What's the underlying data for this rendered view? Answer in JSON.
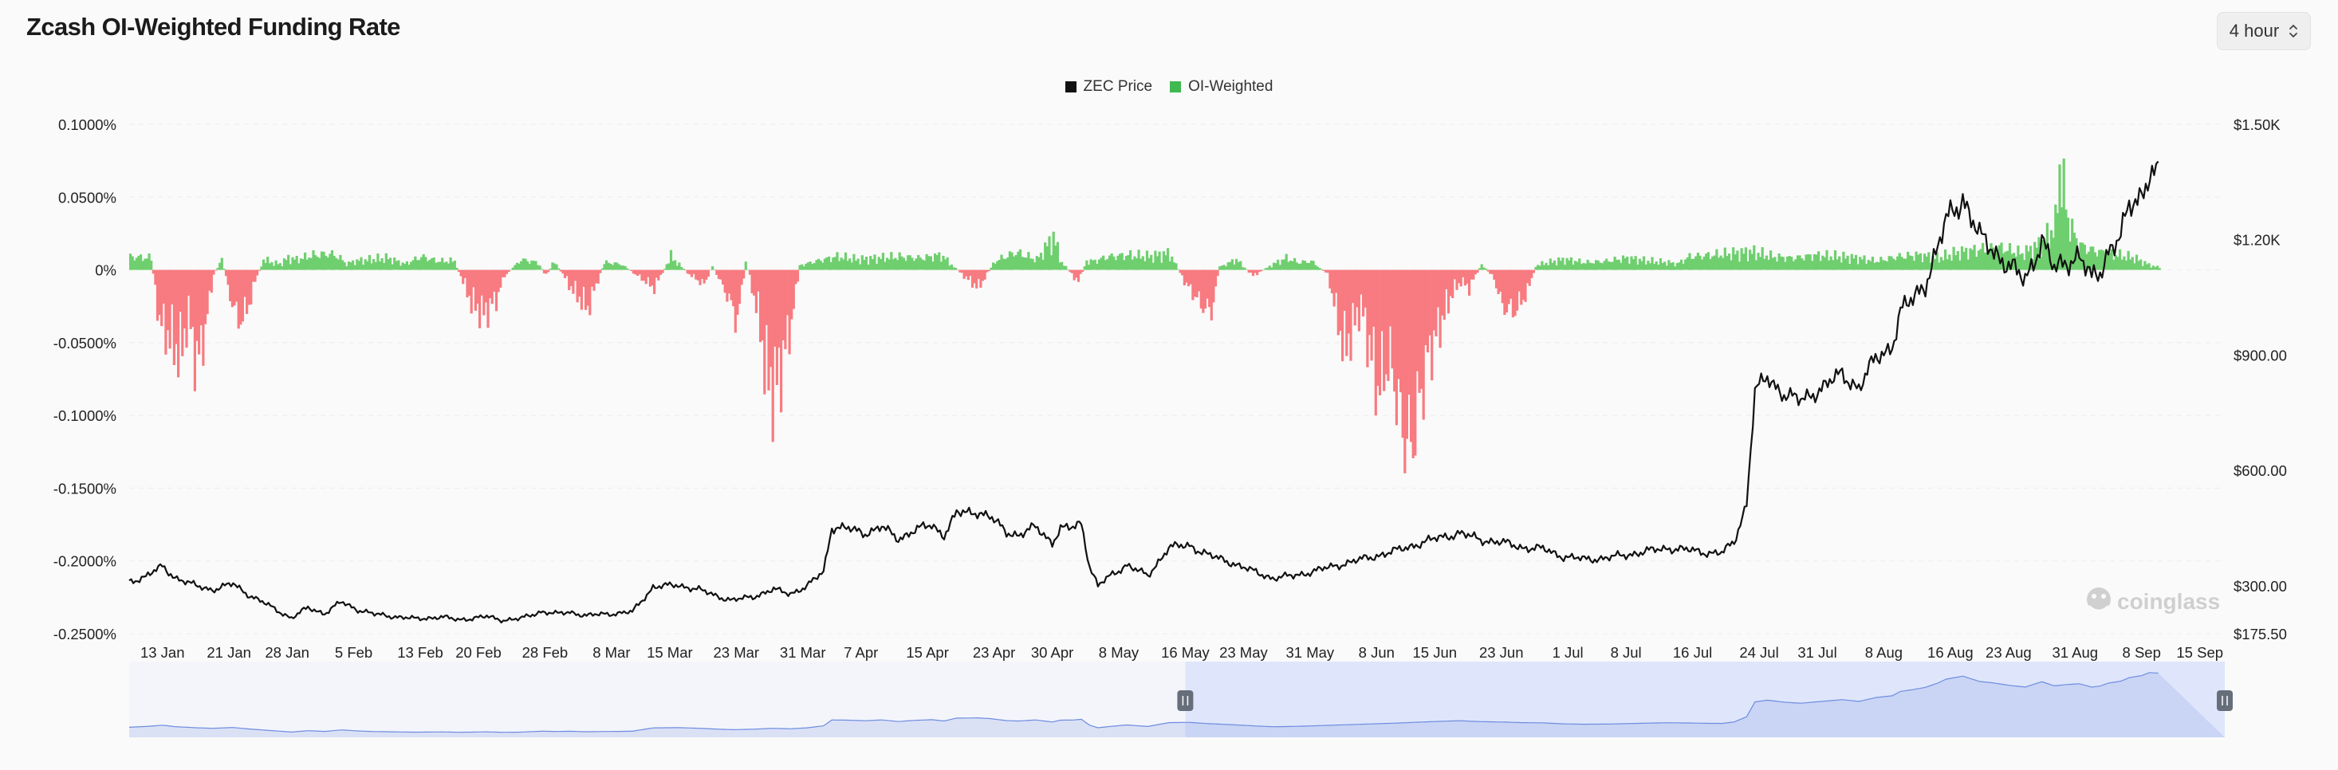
{
  "header": {
    "title": "Zcash OI-Weighted Funding Rate",
    "interval": "4 hour"
  },
  "legend": [
    {
      "label": "ZEC Price",
      "color": "#111111"
    },
    {
      "label": "OI-Weighted",
      "color": "#3fb950"
    }
  ],
  "watermark": "coinglass",
  "colors": {
    "positive": "#6fcf6f",
    "negative": "#f77b80",
    "price": "#111111",
    "navigator_fill": "#dfe6fb",
    "navigator_line": "#6e8ce0"
  },
  "chart_data": {
    "type": "line",
    "x_range": [
      "2025-01-09",
      "2025-09-18"
    ],
    "x_ticks": [
      "13 Jan",
      "21 Jan",
      "28 Jan",
      "5 Feb",
      "13 Feb",
      "20 Feb",
      "28 Feb",
      "8 Mar",
      "15 Mar",
      "23 Mar",
      "31 Mar",
      "7 Apr",
      "15 Apr",
      "23 Apr",
      "30 Apr",
      "8 May",
      "16 May",
      "23 May",
      "31 May",
      "8 Jun",
      "15 Jun",
      "23 Jun",
      "1 Jul",
      "8 Jul",
      "16 Jul",
      "24 Jul",
      "31 Jul",
      "8 Aug",
      "16 Aug",
      "23 Aug",
      "31 Aug",
      "8 Sep",
      "15 Sep"
    ],
    "y_left": {
      "ticks": [
        "0.1000%",
        "0.0500%",
        "0%",
        "-0.0500%",
        "-0.1000%",
        "-0.1500%",
        "-0.2000%",
        "-0.2500%"
      ],
      "range": [
        -0.25,
        0.1
      ]
    },
    "y_right": {
      "ticks": [
        "$1.50K",
        "$1.20K",
        "$900.00",
        "$600.00",
        "$300.00",
        "$175.50"
      ],
      "range": [
        175.5,
        1500
      ]
    },
    "series": [
      {
        "name": "ZEC Price",
        "axis": "right",
        "points": [
          [
            0,
            310
          ],
          [
            4,
            325
          ],
          [
            8,
            350
          ],
          [
            11,
            322
          ],
          [
            16,
            300
          ],
          [
            20,
            290
          ],
          [
            25,
            305
          ],
          [
            29,
            275
          ],
          [
            33,
            252
          ],
          [
            39,
            216
          ],
          [
            43,
            243
          ],
          [
            47,
            228
          ],
          [
            51,
            258
          ],
          [
            55,
            238
          ],
          [
            59,
            226
          ],
          [
            64,
            220
          ],
          [
            69,
            214
          ],
          [
            75,
            219
          ],
          [
            79,
            212
          ],
          [
            83,
            216
          ],
          [
            86,
            220
          ],
          [
            90,
            211
          ],
          [
            94,
            214
          ],
          [
            99,
            233
          ],
          [
            103,
            227
          ],
          [
            106,
            232
          ],
          [
            110,
            222
          ],
          [
            114,
            227
          ],
          [
            117,
            228
          ],
          [
            121,
            232
          ],
          [
            126,
            297
          ],
          [
            132,
            302
          ],
          [
            137,
            290
          ],
          [
            141,
            275
          ],
          [
            145,
            262
          ],
          [
            150,
            272
          ],
          [
            155,
            290
          ],
          [
            159,
            280
          ],
          [
            163,
            298
          ],
          [
            167,
            338
          ],
          [
            169,
            453
          ],
          [
            173,
            448
          ],
          [
            177,
            437
          ],
          [
            181,
            453
          ],
          [
            185,
            422
          ],
          [
            189,
            445
          ],
          [
            193,
            458
          ],
          [
            196,
            432
          ],
          [
            199,
            488
          ],
          [
            204,
            493
          ],
          [
            207,
            479
          ],
          [
            211,
            440
          ],
          [
            214,
            432
          ],
          [
            218,
            453
          ],
          [
            222,
            413
          ],
          [
            224,
            448
          ],
          [
            227,
            451
          ],
          [
            229,
            465
          ],
          [
            231,
            350
          ],
          [
            233,
            300
          ],
          [
            236,
            326
          ],
          [
            240,
            355
          ],
          [
            245,
            325
          ],
          [
            250,
            400
          ],
          [
            255,
            405
          ],
          [
            260,
            378
          ],
          [
            265,
            361
          ],
          [
            270,
            339
          ],
          [
            275,
            320
          ],
          [
            280,
            326
          ],
          [
            285,
            338
          ],
          [
            290,
            352
          ],
          [
            295,
            365
          ],
          [
            300,
            378
          ],
          [
            305,
            392
          ],
          [
            310,
            409
          ],
          [
            315,
            425
          ],
          [
            320,
            437
          ],
          [
            325,
            420
          ],
          [
            330,
            413
          ],
          [
            335,
            400
          ],
          [
            340,
            396
          ],
          [
            345,
            376
          ],
          [
            350,
            369
          ],
          [
            355,
            372
          ],
          [
            360,
            380
          ],
          [
            365,
            390
          ],
          [
            370,
            398
          ],
          [
            375,
            393
          ],
          [
            380,
            386
          ],
          [
            383,
            385
          ],
          [
            386,
            413
          ],
          [
            389,
            515
          ],
          [
            391,
            805
          ],
          [
            394,
            840
          ],
          [
            398,
            800
          ],
          [
            402,
            780
          ],
          [
            407,
            815
          ],
          [
            412,
            850
          ],
          [
            416,
            815
          ],
          [
            420,
            890
          ],
          [
            424,
            925
          ],
          [
            426,
            1010
          ],
          [
            429,
            1045
          ],
          [
            432,
            1090
          ],
          [
            435,
            1175
          ],
          [
            437,
            1250
          ],
          [
            441,
            1310
          ],
          [
            445,
            1205
          ],
          [
            448,
            1180
          ],
          [
            452,
            1130
          ],
          [
            456,
            1095
          ],
          [
            460,
            1200
          ],
          [
            463,
            1120
          ],
          [
            466,
            1145
          ],
          [
            469,
            1160
          ],
          [
            472,
            1095
          ],
          [
            474,
            1115
          ],
          [
            476,
            1175
          ],
          [
            479,
            1210
          ],
          [
            481,
            1280
          ],
          [
            484,
            1320
          ],
          [
            486,
            1380
          ],
          [
            487,
            1370
          ]
        ]
      },
      {
        "name": "OI-Weighted",
        "axis": "left",
        "points": [
          [
            0,
            0.009
          ],
          [
            5,
            0.008
          ],
          [
            7,
            -0.035
          ],
          [
            10,
            -0.048
          ],
          [
            12,
            -0.058
          ],
          [
            14,
            -0.03
          ],
          [
            16,
            -0.065
          ],
          [
            18,
            -0.04
          ],
          [
            20,
            -0.003
          ],
          [
            22,
            0.007
          ],
          [
            24,
            -0.018
          ],
          [
            26,
            -0.035
          ],
          [
            28,
            -0.028
          ],
          [
            30,
            -0.008
          ],
          [
            32,
            0.007
          ],
          [
            34,
            0.005
          ],
          [
            36,
            0.004
          ],
          [
            38,
            0.008
          ],
          [
            40,
            0.007
          ],
          [
            44,
            0.01
          ],
          [
            48,
            0.011
          ],
          [
            50,
            0.009
          ],
          [
            52,
            0.004
          ],
          [
            54,
            0.006
          ],
          [
            58,
            0.007
          ],
          [
            62,
            0.008
          ],
          [
            66,
            0.004
          ],
          [
            70,
            0.009
          ],
          [
            74,
            0.006
          ],
          [
            78,
            0.006
          ],
          [
            82,
            -0.022
          ],
          [
            85,
            -0.03
          ],
          [
            88,
            -0.02
          ],
          [
            90,
            -0.004
          ],
          [
            94,
            0.007
          ],
          [
            98,
            0.005
          ],
          [
            100,
            -0.004
          ],
          [
            102,
            0.006
          ],
          [
            106,
            -0.012
          ],
          [
            110,
            -0.026
          ],
          [
            114,
            0.005
          ],
          [
            118,
            0.004
          ],
          [
            122,
            -0.004
          ],
          [
            126,
            -0.012
          ],
          [
            130,
            0.009
          ],
          [
            134,
            -0.002
          ],
          [
            138,
            -0.01
          ],
          [
            140,
            0.003
          ],
          [
            144,
            -0.02
          ],
          [
            146,
            -0.035
          ],
          [
            148,
            0.006
          ],
          [
            151,
            -0.03
          ],
          [
            153,
            -0.072
          ],
          [
            155,
            -0.082
          ],
          [
            157,
            -0.06
          ],
          [
            159,
            -0.035
          ],
          [
            161,
            0.003
          ],
          [
            165,
            0.006
          ],
          [
            170,
            0.009
          ],
          [
            175,
            0.007
          ],
          [
            180,
            0.008
          ],
          [
            185,
            0.009
          ],
          [
            190,
            0.008
          ],
          [
            195,
            0.01
          ],
          [
            200,
            -0.003
          ],
          [
            204,
            -0.012
          ],
          [
            208,
            0.006
          ],
          [
            213,
            0.012
          ],
          [
            218,
            0.007
          ],
          [
            222,
            0.022
          ],
          [
            224,
            0.005
          ],
          [
            228,
            -0.008
          ],
          [
            230,
            0.006
          ],
          [
            232,
            0.006
          ],
          [
            235,
            0.009
          ],
          [
            240,
            0.01
          ],
          [
            245,
            0.009
          ],
          [
            250,
            0.011
          ],
          [
            254,
            -0.01
          ],
          [
            258,
            -0.025
          ],
          [
            260,
            -0.028
          ],
          [
            262,
            0.002
          ],
          [
            266,
            0.007
          ],
          [
            270,
            -0.004
          ],
          [
            275,
            0.004
          ],
          [
            278,
            0.008
          ],
          [
            281,
            0.005
          ],
          [
            284,
            0.006
          ],
          [
            288,
            -0.003
          ],
          [
            292,
            -0.055
          ],
          [
            296,
            -0.024
          ],
          [
            300,
            -0.08
          ],
          [
            303,
            -0.06
          ],
          [
            306,
            -0.11
          ],
          [
            308,
            -0.12
          ],
          [
            310,
            -0.09
          ],
          [
            312,
            -0.06
          ],
          [
            314,
            -0.045
          ],
          [
            316,
            -0.03
          ],
          [
            318,
            -0.015
          ],
          [
            320,
            -0.008
          ],
          [
            322,
            -0.012
          ],
          [
            325,
            0.004
          ],
          [
            328,
            -0.006
          ],
          [
            330,
            -0.025
          ],
          [
            333,
            -0.028
          ],
          [
            336,
            -0.015
          ],
          [
            338,
            0.003
          ],
          [
            341,
            0.005
          ],
          [
            345,
            0.007
          ],
          [
            350,
            0.005
          ],
          [
            355,
            0.006
          ],
          [
            360,
            0.008
          ],
          [
            365,
            0.006
          ],
          [
            370,
            0.005
          ],
          [
            372,
            0.004
          ],
          [
            375,
            0.009
          ],
          [
            380,
            0.01
          ],
          [
            385,
            0.011
          ],
          [
            390,
            0.012
          ],
          [
            395,
            0.009
          ],
          [
            400,
            0.008
          ],
          [
            405,
            0.01
          ],
          [
            410,
            0.009
          ],
          [
            415,
            0.008
          ],
          [
            420,
            0.006
          ],
          [
            425,
            0.009
          ],
          [
            430,
            0.01
          ],
          [
            435,
            0.008
          ],
          [
            440,
            0.012
          ],
          [
            445,
            0.014
          ],
          [
            450,
            0.015
          ],
          [
            455,
            0.011
          ],
          [
            460,
            0.018
          ],
          [
            463,
            0.03
          ],
          [
            464,
            0.072
          ],
          [
            466,
            0.035
          ],
          [
            468,
            0.02
          ],
          [
            470,
            0.015
          ],
          [
            474,
            0.012
          ],
          [
            478,
            0.01
          ],
          [
            482,
            0.008
          ],
          [
            485,
            0.004
          ],
          [
            487,
            0.002
          ]
        ]
      }
    ],
    "navigator": {
      "range_start": "16 May",
      "range_end": "15 Sep"
    }
  }
}
